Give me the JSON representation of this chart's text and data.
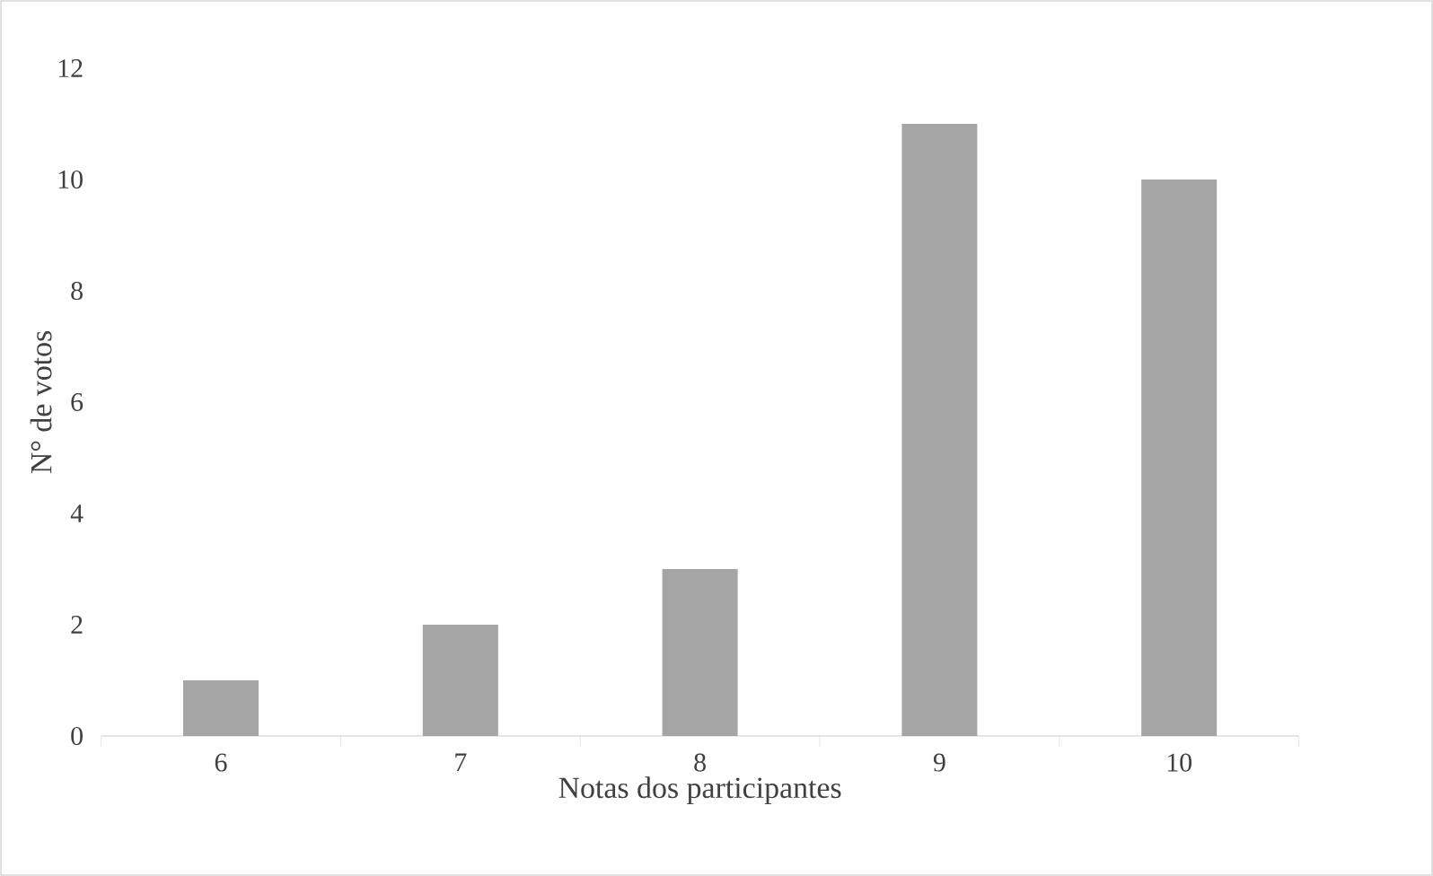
{
  "chart_data": {
    "type": "bar",
    "categories": [
      "6",
      "7",
      "8",
      "9",
      "10"
    ],
    "values": [
      1,
      2,
      3,
      11,
      10
    ],
    "color": "#a5a5a5",
    "ylim": [
      0,
      12
    ],
    "yticks": [
      0,
      2,
      4,
      6,
      8,
      10,
      12
    ],
    "xlabel": "Notas dos participantes",
    "ylabel": "N° de votos"
  }
}
